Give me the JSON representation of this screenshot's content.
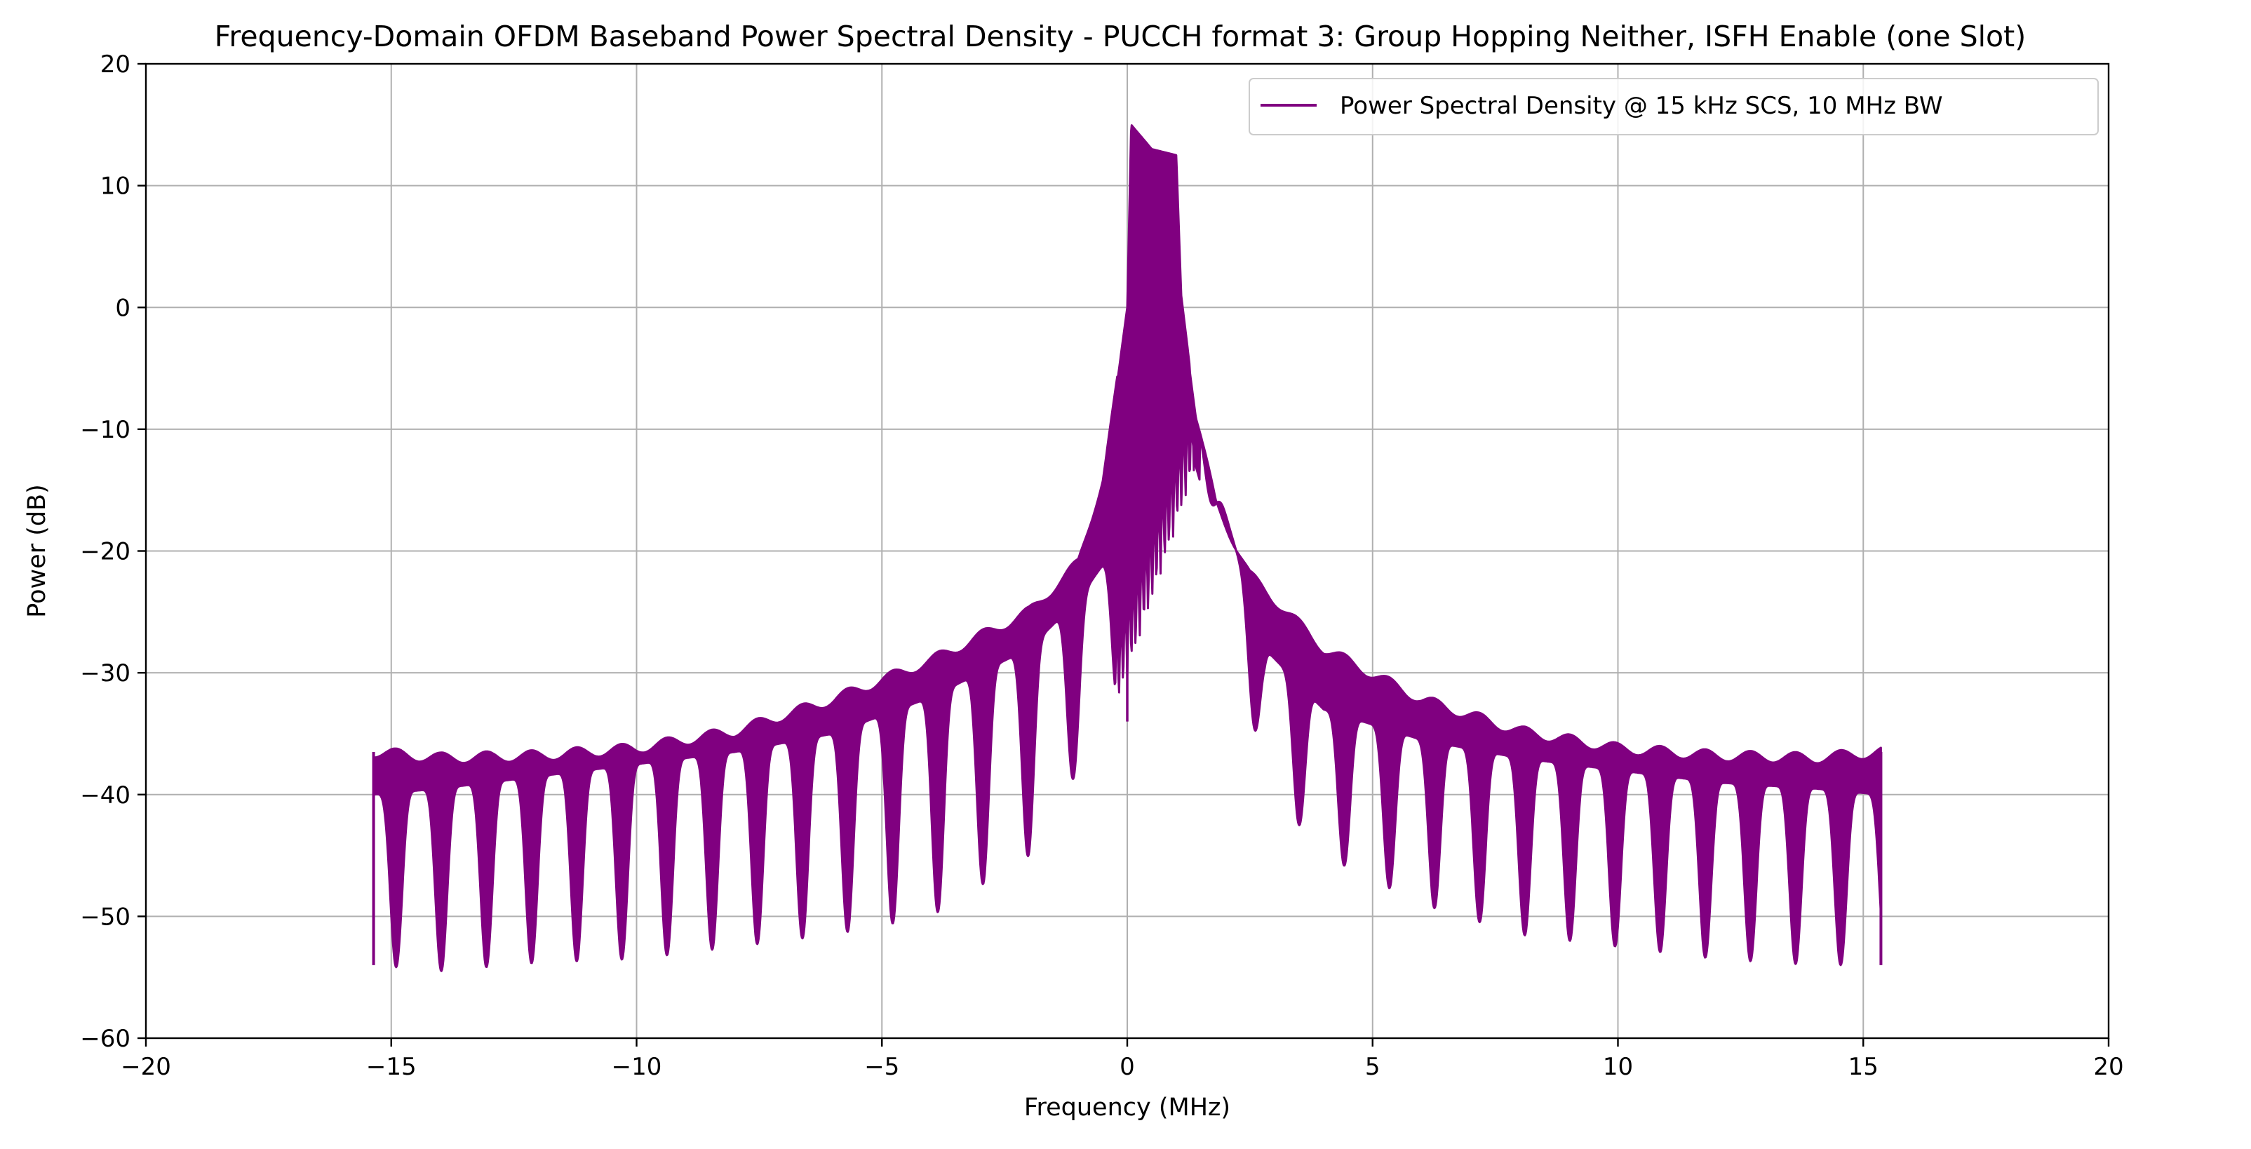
{
  "chart_data": {
    "type": "line",
    "title": "Frequency-Domain OFDM Baseband Power Spectral Density - PUCCH format 3: Group Hopping Neither, ISFH Enable (one Slot)",
    "xlabel": "Frequency (MHz)",
    "ylabel": "Power (dB)",
    "xlim": [
      -20,
      20
    ],
    "ylim": [
      -60,
      20
    ],
    "xticks": [
      -20,
      -15,
      -10,
      -5,
      0,
      5,
      10,
      15,
      20
    ],
    "xtick_labels": [
      "−20",
      "−15",
      "−10",
      "−5",
      "0",
      "5",
      "10",
      "15",
      "20"
    ],
    "yticks": [
      -60,
      -50,
      -40,
      -30,
      -20,
      -10,
      0,
      10,
      20
    ],
    "ytick_labels": [
      "−60",
      "−50",
      "−40",
      "−30",
      "−20",
      "−10",
      "0",
      "10",
      "20"
    ],
    "grid": true,
    "legend_position": "top-right",
    "series": [
      {
        "name": "Power Spectral Density @ 15 kHz SCS, 10 MHz BW",
        "color": "#800080",
        "x_range": [
          -15.36,
          15.36
        ],
        "lobe_spacing_mhz": 0.92,
        "signal_band_mhz": [
          0.0,
          1.08
        ],
        "upper_envelope": [
          [
            -15.36,
            -36.5
          ],
          [
            -14.0,
            -37.0
          ],
          [
            -12.0,
            -36.8
          ],
          [
            -10.0,
            -36.2
          ],
          [
            -8.0,
            -34.8
          ],
          [
            -6.0,
            -32.2
          ],
          [
            -4.0,
            -29.0
          ],
          [
            -2.0,
            -25.0
          ],
          [
            -1.0,
            -21.0
          ],
          [
            -0.5,
            -14.0
          ],
          [
            -0.2,
            -6.0
          ],
          [
            0.0,
            0.0
          ],
          [
            0.08,
            15.0
          ],
          [
            0.5,
            13.0
          ],
          [
            1.0,
            12.5
          ],
          [
            1.1,
            1.0
          ],
          [
            1.4,
            -9.0
          ],
          [
            1.8,
            -16.0
          ],
          [
            2.5,
            -22.0
          ],
          [
            4.0,
            -28.0
          ],
          [
            6.0,
            -32.2
          ],
          [
            8.0,
            -34.8
          ],
          [
            10.0,
            -36.2
          ],
          [
            12.0,
            -36.8
          ],
          [
            14.0,
            -37.0
          ],
          [
            15.36,
            -36.5
          ]
        ],
        "lower_envelope_troughs": [
          [
            -15.36,
            -54.0
          ],
          [
            -14.0,
            -54.5
          ],
          [
            -12.0,
            -53.8
          ],
          [
            -10.0,
            -53.5
          ],
          [
            -8.0,
            -52.5
          ],
          [
            -6.0,
            -51.5
          ],
          [
            -4.0,
            -50.0
          ],
          [
            -2.0,
            -45.0
          ],
          [
            -1.0,
            -38.0
          ],
          [
            -0.3,
            -34.0
          ],
          [
            1.5,
            -12.0
          ],
          [
            2.8,
            -39.0
          ],
          [
            4.0,
            -45.0
          ],
          [
            6.0,
            -49.0
          ],
          [
            8.0,
            -51.5
          ],
          [
            10.0,
            -52.5
          ],
          [
            12.0,
            -53.5
          ],
          [
            14.0,
            -54.0
          ],
          [
            15.36,
            -54.0
          ]
        ],
        "lower_envelope_ridges": [
          [
            -15.36,
            -40.0
          ],
          [
            -14.0,
            -39.5
          ],
          [
            -12.0,
            -38.5
          ],
          [
            -10.0,
            -37.5
          ],
          [
            -8.0,
            -36.5
          ],
          [
            -6.0,
            -35.0
          ],
          [
            -4.0,
            -32.0
          ],
          [
            -2.0,
            -28.0
          ],
          [
            -1.0,
            -24.0
          ],
          [
            -0.3,
            -20.0
          ],
          [
            1.5,
            -10.0
          ],
          [
            2.8,
            -28.0
          ],
          [
            4.0,
            -33.0
          ],
          [
            6.0,
            -35.5
          ],
          [
            8.0,
            -37.0
          ],
          [
            10.0,
            -38.0
          ],
          [
            12.0,
            -39.0
          ],
          [
            14.0,
            -39.5
          ],
          [
            15.36,
            -40.0
          ]
        ],
        "notable_dips": [
          [
            0.0,
            -34.0
          ],
          [
            0.3,
            -20.0
          ],
          [
            0.55,
            -12.5
          ],
          [
            0.85,
            -10.5
          ]
        ]
      }
    ]
  }
}
